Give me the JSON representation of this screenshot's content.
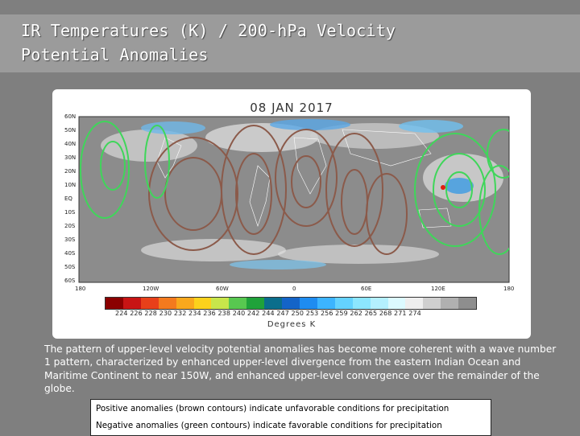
{
  "title": {
    "line1": "IR Temperatures (K) / 200-hPa Velocity",
    "line2": "Potential Anomalies"
  },
  "figure": {
    "date": "08 JAN 2017",
    "lat_labels": [
      "60N",
      "50N",
      "40N",
      "30N",
      "20N",
      "10N",
      "EQ",
      "10S",
      "20S",
      "30S",
      "40S",
      "50S",
      "60S"
    ],
    "lon_labels": [
      "180",
      "120W",
      "60W",
      "0",
      "60E",
      "120E",
      "180"
    ],
    "colorbar_labels": "224 226 228 230 232 234 236 238 240 242 244 247 250 253 256 259 262 265 268 271 274",
    "colorbar_colors": [
      "#8b0000",
      "#c81414",
      "#e8401a",
      "#f47a1e",
      "#f9a81d",
      "#fbd21c",
      "#c8e64b",
      "#58c850",
      "#1fa23a",
      "#0a6e8c",
      "#1464c8",
      "#1e8cf0",
      "#3cb4ff",
      "#64d2ff",
      "#8ce6ff",
      "#b4f0ff",
      "#dcfaff",
      "#eeeeee",
      "#cfcfcf",
      "#b0b0b0",
      "#8e8e8e"
    ],
    "axis_title": "Degrees K",
    "contour_colors": {
      "positive": "#8b5a4a",
      "negative": "#3fd65a"
    }
  },
  "description": "The pattern of upper-level velocity potential anomalies has become more coherent with a wave number 1 pattern, characterized by enhanced upper-level divergence from the eastern Indian Ocean and Maritime Continent to near 150W, and enhanced upper-level convergence over the remainder of the globe.",
  "notes": {
    "positive": "Positive anomalies (brown contours) indicate unfavorable conditions for precipitation",
    "negative": "Negative anomalies (green contours) indicate favorable conditions for precipitation"
  }
}
